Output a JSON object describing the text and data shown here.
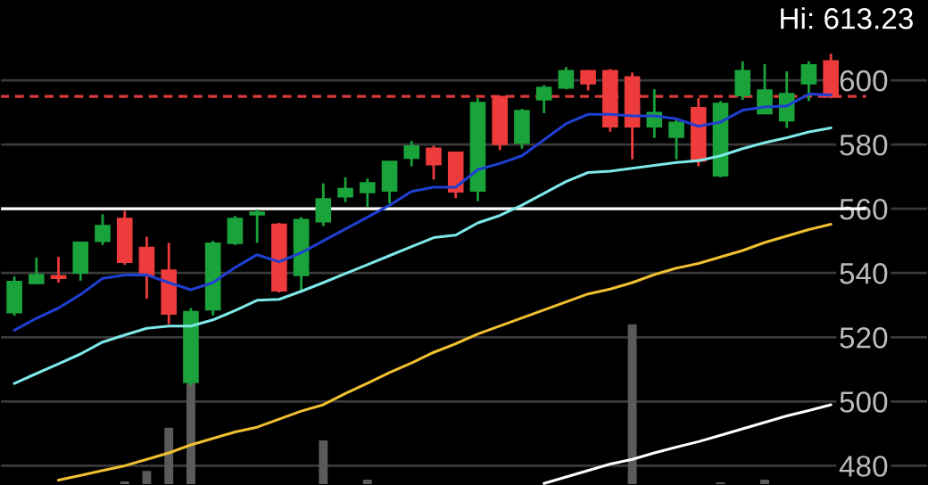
{
  "chart_data": {
    "type": "candlestick",
    "categories": [
      null,
      null,
      null,
      null,
      null,
      null,
      null,
      null,
      null,
      null,
      null,
      null,
      null,
      null,
      null,
      null,
      null,
      null,
      null,
      null,
      null,
      null,
      null,
      null,
      null,
      null,
      null,
      null,
      null,
      null,
      null,
      null,
      null,
      null,
      null,
      null,
      null,
      null
    ],
    "ohlc": [
      [
        527.8,
        538.9,
        526.7,
        537.2
      ],
      [
        536.9,
        544.8,
        536.5,
        539.3
      ],
      [
        539,
        545,
        537,
        538.5
      ],
      [
        540.2,
        549.6,
        537.6,
        549.4
      ],
      [
        550,
        558.3,
        548.7,
        554.6
      ],
      [
        556.8,
        559.3,
        542.6,
        543.5
      ],
      [
        547.8,
        551.3,
        532,
        539.4
      ],
      [
        540.7,
        549.4,
        524.1,
        527.4
      ],
      [
        506.1,
        529.1,
        505,
        527.8
      ],
      [
        528.7,
        550,
        526.8,
        549.1
      ],
      [
        549.4,
        557.8,
        548.7,
        556.8
      ],
      [
        558.3,
        559.8,
        549.4,
        558.8
      ],
      [
        555,
        555.6,
        533.9,
        534.6
      ],
      [
        539.4,
        557.4,
        534.6,
        556.5
      ],
      [
        556.1,
        567.9,
        554.6,
        562.9
      ],
      [
        563.9,
        569.8,
        562.1,
        566.1
      ],
      [
        565.2,
        569.4,
        560.6,
        567.9
      ],
      [
        565.7,
        574.6,
        561.7,
        574.6
      ],
      [
        575.9,
        581.1,
        573.2,
        579.4
      ],
      [
        578.7,
        579.6,
        569.1,
        573.9
      ],
      [
        577.4,
        577.8,
        563.3,
        565.4
      ],
      [
        565.7,
        594.4,
        562.4,
        592.9
      ],
      [
        594.8,
        594.8,
        578.3,
        580.2
      ],
      [
        580.6,
        591.1,
        578.7,
        590.4
      ],
      [
        594.1,
        598.5,
        589.8,
        597.6
      ],
      [
        597.8,
        604.1,
        597.2,
        602.8
      ],
      [
        602.8,
        603.2,
        596.8,
        599.1
      ],
      [
        602.8,
        603.5,
        584,
        585.7
      ],
      [
        600.9,
        602.4,
        575.4,
        585.7
      ],
      [
        585.7,
        597.2,
        582.1,
        589.8
      ],
      [
        582.4,
        588,
        575.4,
        586.7
      ],
      [
        591.3,
        594.4,
        573.2,
        575
      ],
      [
        570.4,
        593.5,
        569.8,
        592.6
      ],
      [
        595.4,
        605.9,
        593.9,
        602.8
      ],
      [
        589.8,
        605,
        589.4,
        596.8
      ],
      [
        587.6,
        602.8,
        585.2,
        595.7
      ],
      [
        599.1,
        605.9,
        593.5,
        604.6
      ],
      [
        605.9,
        608.3,
        594.4,
        595
      ]
    ],
    "colors": [
      "#1aa33a",
      "#1aa33a",
      "#ee3b3b",
      "#1aa33a",
      "#1aa33a",
      "#ee3b3b",
      "#ee3b3b",
      "#ee3b3b",
      "#1aa33a",
      "#1aa33a",
      "#1aa33a",
      "#1aa33a",
      "#ee3b3b",
      "#1aa33a",
      "#1aa33a",
      "#1aa33a",
      "#1aa33a",
      "#1aa33a",
      "#1aa33a",
      "#ee3b3b",
      "#ee3b3b",
      "#1aa33a",
      "#ee3b3b",
      "#1aa33a",
      "#1aa33a",
      "#1aa33a",
      "#ee3b3b",
      "#ee3b3b",
      "#ee3b3b",
      "#1aa33a",
      "#1aa33a",
      "#ee3b3b",
      "#1aa33a",
      "#1aa33a",
      "#1aa33a",
      "#1aa33a",
      "#1aa33a",
      "#ee3b3b"
    ],
    "series": [
      {
        "type": "bar",
        "color": "#5a5a5a",
        "values": [
          null,
          null,
          null,
          null,
          null,
          475.1,
          478.4,
          491.8,
          505.7,
          null,
          null,
          null,
          null,
          null,
          487.9,
          null,
          475.7,
          null,
          null,
          null,
          null,
          null,
          null,
          null,
          null,
          null,
          null,
          null,
          524,
          null,
          null,
          null,
          474.8,
          null,
          475.7,
          null,
          null,
          null
        ]
      },
      {
        "type": "line",
        "color": "#1f3fd0",
        "values": [
          522.2,
          525.9,
          529.1,
          533.3,
          538.3,
          539.4,
          539.4,
          537,
          534.8,
          537,
          541.7,
          545.7,
          543.5,
          546.3,
          550,
          553.7,
          557.4,
          561.1,
          565.4,
          566.7,
          566.7,
          572.2,
          574.1,
          576.5,
          581.5,
          586.5,
          589.4,
          589.4,
          588.9,
          588.9,
          588,
          585.7,
          587,
          590.7,
          591.7,
          592,
          595.7,
          595.4
        ]
      },
      {
        "type": "line",
        "color": "#7fe8e8",
        "values": [
          505.6,
          508.7,
          511.7,
          514.8,
          518.5,
          520.7,
          522.8,
          523.5,
          523.5,
          525.4,
          528.3,
          531.5,
          531.8,
          534.3,
          537,
          539.8,
          542.6,
          545.4,
          548.2,
          551,
          551.8,
          555.6,
          557.9,
          561.1,
          564.8,
          568.5,
          571.3,
          571.7,
          572.6,
          573.5,
          574.4,
          575,
          576.5,
          578.7,
          580.6,
          582.1,
          583.9,
          585.2
        ]
      },
      {
        "type": "line",
        "color": "#f0c030",
        "values": [
          null,
          null,
          475.5,
          477,
          478.5,
          480,
          482,
          484,
          486.5,
          488.5,
          490.5,
          492,
          494.5,
          497,
          499,
          502.5,
          505.7,
          509,
          512,
          515.3,
          518,
          521,
          523.5,
          526,
          528.5,
          531,
          533.5,
          535,
          537,
          539.5,
          541.5,
          543,
          545,
          547,
          549.5,
          551.5,
          553.5,
          555.2
        ]
      },
      {
        "type": "line",
        "color": "#ffffff",
        "values": [
          null,
          null,
          null,
          null,
          null,
          null,
          null,
          null,
          null,
          null,
          null,
          null,
          null,
          null,
          null,
          null,
          null,
          null,
          null,
          null,
          null,
          null,
          null,
          null,
          474.5,
          476.5,
          478.5,
          480.5,
          482,
          484,
          485.8,
          487.5,
          489.5,
          491.5,
          493.5,
          495.5,
          497.2,
          499
        ]
      }
    ],
    "ylim": [
      474,
      625
    ],
    "yticks": [
      480,
      500,
      520,
      540,
      560,
      580,
      600
    ],
    "tick_labels": "y",
    "grid": "y",
    "legend": false,
    "ref_lines": [
      {
        "axis": "y",
        "value": 560,
        "color": "#ffffff",
        "line_style": "solid"
      },
      {
        "axis": "y",
        "value": 595,
        "color": "#d83a3a",
        "line_style": "dashed"
      }
    ],
    "annotations": [
      "Hi: 613.23"
    ]
  }
}
